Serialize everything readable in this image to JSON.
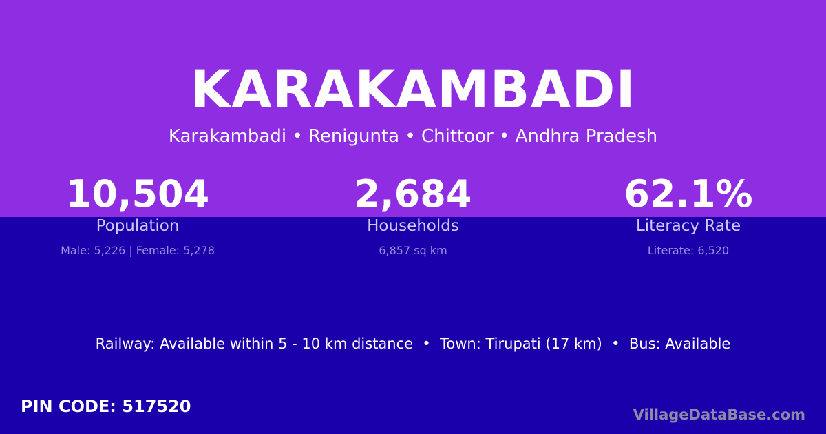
{
  "colors": {
    "top": "#8e2de2",
    "bottom": "#1a00ab"
  },
  "title": "KARAKAMBADI",
  "subtitle": "Karakambadi • Renigunta • Chittoor • Andhra Pradesh",
  "stats": [
    {
      "value": "10,504",
      "label": "Population",
      "detail": "Male: 5,226 | Female: 5,278"
    },
    {
      "value": "2,684",
      "label": "Households",
      "detail": "6,857 sq km"
    },
    {
      "value": "62.1%",
      "label": "Literacy Rate",
      "detail": "Literate: 6,520"
    }
  ],
  "info": "Railway: Available within 5 - 10 km distance  •  Town: Tirupati (17 km)  •  Bus: Available",
  "pin": "PIN CODE: 517520",
  "brand": "VillageDataBase.com"
}
